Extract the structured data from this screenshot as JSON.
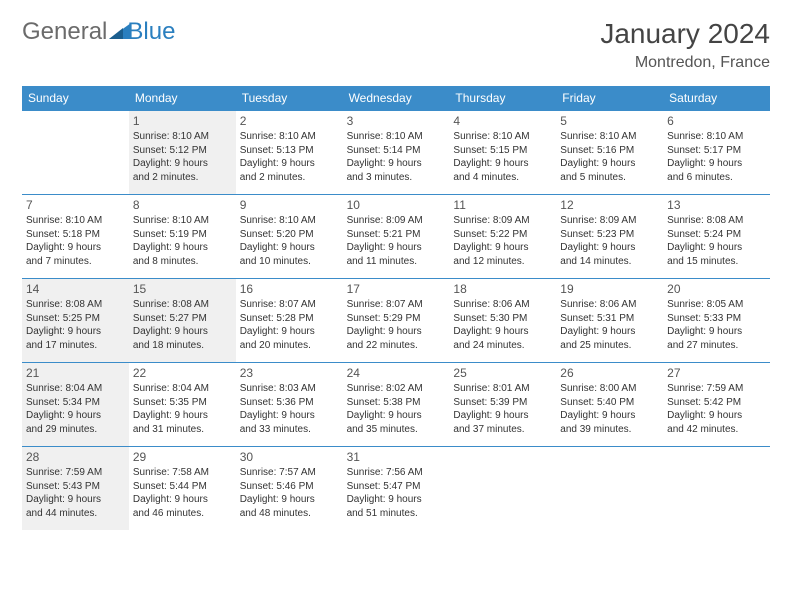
{
  "brand": {
    "part1": "General",
    "part2": "Blue",
    "accent_color": "#2a7fbf"
  },
  "title": "January 2024",
  "location": "Montredon, France",
  "header_bg": "#3b8cc9",
  "header_text_color": "#ffffff",
  "border_color": "#3b8cc9",
  "shaded_bg": "#f0f0f0",
  "weekdays": [
    "Sunday",
    "Monday",
    "Tuesday",
    "Wednesday",
    "Thursday",
    "Friday",
    "Saturday"
  ],
  "weeks": [
    [
      {
        "blank": true,
        "shaded": false
      },
      {
        "day": "1",
        "shaded": true,
        "sunrise": "Sunrise: 8:10 AM",
        "sunset": "Sunset: 5:12 PM",
        "dl1": "Daylight: 9 hours",
        "dl2": "and 2 minutes."
      },
      {
        "day": "2",
        "shaded": false,
        "sunrise": "Sunrise: 8:10 AM",
        "sunset": "Sunset: 5:13 PM",
        "dl1": "Daylight: 9 hours",
        "dl2": "and 2 minutes."
      },
      {
        "day": "3",
        "shaded": false,
        "sunrise": "Sunrise: 8:10 AM",
        "sunset": "Sunset: 5:14 PM",
        "dl1": "Daylight: 9 hours",
        "dl2": "and 3 minutes."
      },
      {
        "day": "4",
        "shaded": false,
        "sunrise": "Sunrise: 8:10 AM",
        "sunset": "Sunset: 5:15 PM",
        "dl1": "Daylight: 9 hours",
        "dl2": "and 4 minutes."
      },
      {
        "day": "5",
        "shaded": false,
        "sunrise": "Sunrise: 8:10 AM",
        "sunset": "Sunset: 5:16 PM",
        "dl1": "Daylight: 9 hours",
        "dl2": "and 5 minutes."
      },
      {
        "day": "6",
        "shaded": false,
        "sunrise": "Sunrise: 8:10 AM",
        "sunset": "Sunset: 5:17 PM",
        "dl1": "Daylight: 9 hours",
        "dl2": "and 6 minutes."
      }
    ],
    [
      {
        "day": "7",
        "shaded": false,
        "sunrise": "Sunrise: 8:10 AM",
        "sunset": "Sunset: 5:18 PM",
        "dl1": "Daylight: 9 hours",
        "dl2": "and 7 minutes."
      },
      {
        "day": "8",
        "shaded": false,
        "sunrise": "Sunrise: 8:10 AM",
        "sunset": "Sunset: 5:19 PM",
        "dl1": "Daylight: 9 hours",
        "dl2": "and 8 minutes."
      },
      {
        "day": "9",
        "shaded": false,
        "sunrise": "Sunrise: 8:10 AM",
        "sunset": "Sunset: 5:20 PM",
        "dl1": "Daylight: 9 hours",
        "dl2": "and 10 minutes."
      },
      {
        "day": "10",
        "shaded": false,
        "sunrise": "Sunrise: 8:09 AM",
        "sunset": "Sunset: 5:21 PM",
        "dl1": "Daylight: 9 hours",
        "dl2": "and 11 minutes."
      },
      {
        "day": "11",
        "shaded": false,
        "sunrise": "Sunrise: 8:09 AM",
        "sunset": "Sunset: 5:22 PM",
        "dl1": "Daylight: 9 hours",
        "dl2": "and 12 minutes."
      },
      {
        "day": "12",
        "shaded": false,
        "sunrise": "Sunrise: 8:09 AM",
        "sunset": "Sunset: 5:23 PM",
        "dl1": "Daylight: 9 hours",
        "dl2": "and 14 minutes."
      },
      {
        "day": "13",
        "shaded": false,
        "sunrise": "Sunrise: 8:08 AM",
        "sunset": "Sunset: 5:24 PM",
        "dl1": "Daylight: 9 hours",
        "dl2": "and 15 minutes."
      }
    ],
    [
      {
        "day": "14",
        "shaded": true,
        "sunrise": "Sunrise: 8:08 AM",
        "sunset": "Sunset: 5:25 PM",
        "dl1": "Daylight: 9 hours",
        "dl2": "and 17 minutes."
      },
      {
        "day": "15",
        "shaded": true,
        "sunrise": "Sunrise: 8:08 AM",
        "sunset": "Sunset: 5:27 PM",
        "dl1": "Daylight: 9 hours",
        "dl2": "and 18 minutes."
      },
      {
        "day": "16",
        "shaded": false,
        "sunrise": "Sunrise: 8:07 AM",
        "sunset": "Sunset: 5:28 PM",
        "dl1": "Daylight: 9 hours",
        "dl2": "and 20 minutes."
      },
      {
        "day": "17",
        "shaded": false,
        "sunrise": "Sunrise: 8:07 AM",
        "sunset": "Sunset: 5:29 PM",
        "dl1": "Daylight: 9 hours",
        "dl2": "and 22 minutes."
      },
      {
        "day": "18",
        "shaded": false,
        "sunrise": "Sunrise: 8:06 AM",
        "sunset": "Sunset: 5:30 PM",
        "dl1": "Daylight: 9 hours",
        "dl2": "and 24 minutes."
      },
      {
        "day": "19",
        "shaded": false,
        "sunrise": "Sunrise: 8:06 AM",
        "sunset": "Sunset: 5:31 PM",
        "dl1": "Daylight: 9 hours",
        "dl2": "and 25 minutes."
      },
      {
        "day": "20",
        "shaded": false,
        "sunrise": "Sunrise: 8:05 AM",
        "sunset": "Sunset: 5:33 PM",
        "dl1": "Daylight: 9 hours",
        "dl2": "and 27 minutes."
      }
    ],
    [
      {
        "day": "21",
        "shaded": true,
        "sunrise": "Sunrise: 8:04 AM",
        "sunset": "Sunset: 5:34 PM",
        "dl1": "Daylight: 9 hours",
        "dl2": "and 29 minutes."
      },
      {
        "day": "22",
        "shaded": false,
        "sunrise": "Sunrise: 8:04 AM",
        "sunset": "Sunset: 5:35 PM",
        "dl1": "Daylight: 9 hours",
        "dl2": "and 31 minutes."
      },
      {
        "day": "23",
        "shaded": false,
        "sunrise": "Sunrise: 8:03 AM",
        "sunset": "Sunset: 5:36 PM",
        "dl1": "Daylight: 9 hours",
        "dl2": "and 33 minutes."
      },
      {
        "day": "24",
        "shaded": false,
        "sunrise": "Sunrise: 8:02 AM",
        "sunset": "Sunset: 5:38 PM",
        "dl1": "Daylight: 9 hours",
        "dl2": "and 35 minutes."
      },
      {
        "day": "25",
        "shaded": false,
        "sunrise": "Sunrise: 8:01 AM",
        "sunset": "Sunset: 5:39 PM",
        "dl1": "Daylight: 9 hours",
        "dl2": "and 37 minutes."
      },
      {
        "day": "26",
        "shaded": false,
        "sunrise": "Sunrise: 8:00 AM",
        "sunset": "Sunset: 5:40 PM",
        "dl1": "Daylight: 9 hours",
        "dl2": "and 39 minutes."
      },
      {
        "day": "27",
        "shaded": false,
        "sunrise": "Sunrise: 7:59 AM",
        "sunset": "Sunset: 5:42 PM",
        "dl1": "Daylight: 9 hours",
        "dl2": "and 42 minutes."
      }
    ],
    [
      {
        "day": "28",
        "shaded": true,
        "sunrise": "Sunrise: 7:59 AM",
        "sunset": "Sunset: 5:43 PM",
        "dl1": "Daylight: 9 hours",
        "dl2": "and 44 minutes."
      },
      {
        "day": "29",
        "shaded": false,
        "sunrise": "Sunrise: 7:58 AM",
        "sunset": "Sunset: 5:44 PM",
        "dl1": "Daylight: 9 hours",
        "dl2": "and 46 minutes."
      },
      {
        "day": "30",
        "shaded": false,
        "sunrise": "Sunrise: 7:57 AM",
        "sunset": "Sunset: 5:46 PM",
        "dl1": "Daylight: 9 hours",
        "dl2": "and 48 minutes."
      },
      {
        "day": "31",
        "shaded": false,
        "sunrise": "Sunrise: 7:56 AM",
        "sunset": "Sunset: 5:47 PM",
        "dl1": "Daylight: 9 hours",
        "dl2": "and 51 minutes."
      },
      {
        "blank": true,
        "shaded": false
      },
      {
        "blank": true,
        "shaded": false
      },
      {
        "blank": true,
        "shaded": false
      }
    ]
  ]
}
